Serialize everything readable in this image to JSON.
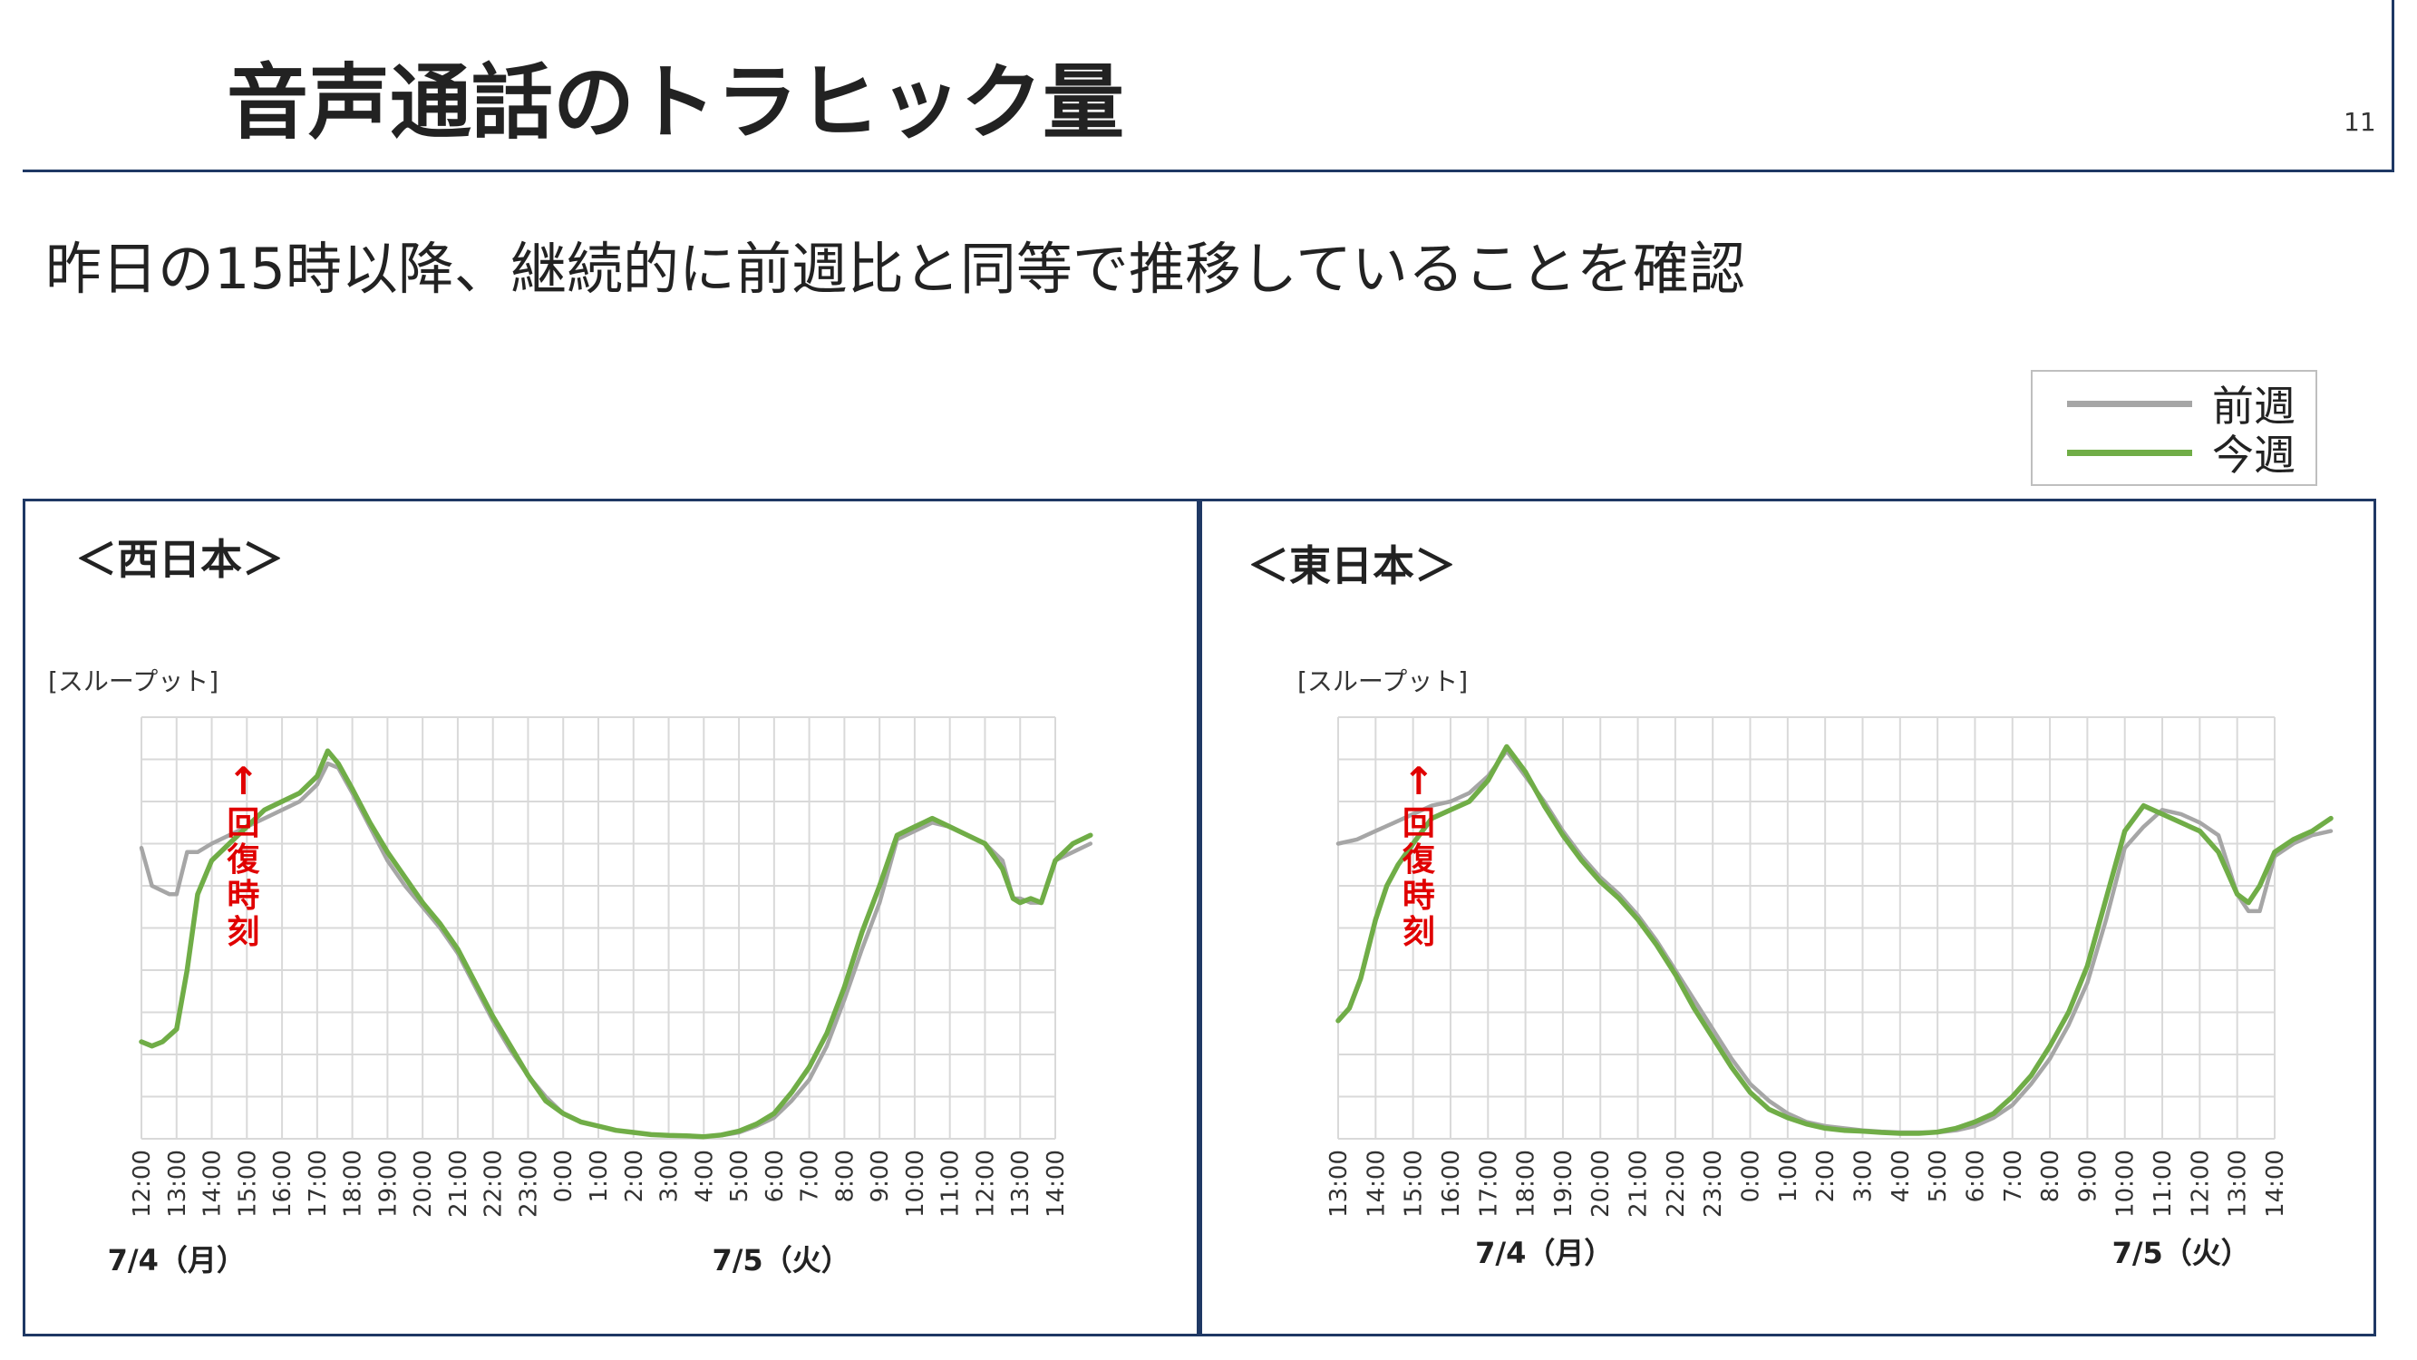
{
  "slide": {
    "title": "音声通話のトラヒック量",
    "page_number": "11",
    "subtitle": "昨日の15時以降、継続的に前週比と同等で推移していることを確認"
  },
  "legend": {
    "items": [
      {
        "label": "前週",
        "color": "#a6a6a6"
      },
      {
        "label": "今週",
        "color": "#70ad47"
      }
    ]
  },
  "colors": {
    "accent": "#1f3864",
    "annotation": "#e00000",
    "grid": "#d9d9d9"
  },
  "chart_data": [
    {
      "type": "line",
      "panel_title": "＜西日本＞",
      "ylabel": "[スループット]",
      "x_ticks": [
        "12:00",
        "13:00",
        "14:00",
        "15:00",
        "16:00",
        "17:00",
        "18:00",
        "19:00",
        "20:00",
        "21:00",
        "22:00",
        "23:00",
        "0:00",
        "1:00",
        "2:00",
        "3:00",
        "4:00",
        "5:00",
        "6:00",
        "7:00",
        "8:00",
        "9:00",
        "10:00",
        "11:00",
        "12:00",
        "13:00",
        "14:00"
      ],
      "date_labels": [
        {
          "text": "7/4（月）",
          "at": 1
        },
        {
          "text": "7/5（火）",
          "at": 18.2
        }
      ],
      "annotation": {
        "arrow": "↑",
        "text": "回復時刻",
        "at": 2.9
      },
      "grid": true,
      "ylim": [
        0,
        100
      ],
      "series": [
        {
          "name": "前週",
          "color": "#a6a6a6",
          "points": [
            [
              0,
              69
            ],
            [
              0.3,
              60
            ],
            [
              0.8,
              58
            ],
            [
              1.0,
              58
            ],
            [
              1.3,
              68
            ],
            [
              1.6,
              68
            ],
            [
              2.0,
              70
            ],
            [
              2.5,
              72
            ],
            [
              3.0,
              74
            ],
            [
              3.5,
              76
            ],
            [
              4.0,
              78
            ],
            [
              4.5,
              80
            ],
            [
              5.0,
              84
            ],
            [
              5.3,
              89
            ],
            [
              5.6,
              88
            ],
            [
              6.0,
              82
            ],
            [
              6.5,
              74
            ],
            [
              7.0,
              66
            ],
            [
              7.5,
              60
            ],
            [
              8.0,
              55
            ],
            [
              8.5,
              50
            ],
            [
              9.0,
              44
            ],
            [
              9.5,
              36
            ],
            [
              10.0,
              28
            ],
            [
              10.5,
              21
            ],
            [
              11.0,
              15
            ],
            [
              11.5,
              10
            ],
            [
              12.0,
              6
            ],
            [
              12.5,
              4
            ],
            [
              13.0,
              3
            ],
            [
              13.5,
              2
            ],
            [
              14.0,
              1.5
            ],
            [
              14.5,
              1
            ],
            [
              15.0,
              0.8
            ],
            [
              15.5,
              0.7
            ],
            [
              16.0,
              0.5
            ],
            [
              16.5,
              0.8
            ],
            [
              17.0,
              1.5
            ],
            [
              17.5,
              3
            ],
            [
              18.0,
              5
            ],
            [
              18.5,
              9
            ],
            [
              19.0,
              14
            ],
            [
              19.5,
              22
            ],
            [
              20.0,
              33
            ],
            [
              20.5,
              45
            ],
            [
              21.0,
              56
            ],
            [
              21.5,
              71
            ],
            [
              22.0,
              73
            ],
            [
              22.5,
              75
            ],
            [
              23.0,
              74
            ],
            [
              23.5,
              72
            ],
            [
              24.0,
              70
            ],
            [
              24.5,
              66
            ],
            [
              24.8,
              57
            ],
            [
              25.0,
              57
            ],
            [
              25.3,
              56
            ],
            [
              25.6,
              56
            ],
            [
              26.0,
              66
            ],
            [
              26.5,
              68
            ],
            [
              27.0,
              70
            ]
          ]
        },
        {
          "name": "今週",
          "color": "#70ad47",
          "points": [
            [
              0,
              23
            ],
            [
              0.3,
              22
            ],
            [
              0.6,
              23
            ],
            [
              1.0,
              26
            ],
            [
              1.3,
              40
            ],
            [
              1.6,
              58
            ],
            [
              2.0,
              66
            ],
            [
              2.5,
              70
            ],
            [
              3.0,
              74
            ],
            [
              3.5,
              78
            ],
            [
              4.0,
              80
            ],
            [
              4.5,
              82
            ],
            [
              5.0,
              86
            ],
            [
              5.3,
              92
            ],
            [
              5.6,
              89
            ],
            [
              6.0,
              83
            ],
            [
              6.5,
              75
            ],
            [
              7.0,
              68
            ],
            [
              7.5,
              62
            ],
            [
              8.0,
              56
            ],
            [
              8.5,
              51
            ],
            [
              9.0,
              45
            ],
            [
              9.5,
              37
            ],
            [
              10.0,
              29
            ],
            [
              10.5,
              22
            ],
            [
              11.0,
              15
            ],
            [
              11.5,
              9
            ],
            [
              12.0,
              6
            ],
            [
              12.5,
              4
            ],
            [
              13.0,
              3
            ],
            [
              13.5,
              2
            ],
            [
              14.0,
              1.5
            ],
            [
              14.5,
              1
            ],
            [
              15.0,
              0.8
            ],
            [
              15.5,
              0.7
            ],
            [
              16.0,
              0.5
            ],
            [
              16.5,
              0.9
            ],
            [
              17.0,
              1.8
            ],
            [
              17.5,
              3.5
            ],
            [
              18.0,
              6
            ],
            [
              18.5,
              11
            ],
            [
              19.0,
              17
            ],
            [
              19.5,
              25
            ],
            [
              20.0,
              36
            ],
            [
              20.5,
              49
            ],
            [
              21.0,
              60
            ],
            [
              21.5,
              72
            ],
            [
              22.0,
              74
            ],
            [
              22.5,
              76
            ],
            [
              23.0,
              74
            ],
            [
              23.5,
              72
            ],
            [
              24.0,
              70
            ],
            [
              24.5,
              64
            ],
            [
              24.8,
              57
            ],
            [
              25.0,
              56
            ],
            [
              25.3,
              57
            ],
            [
              25.6,
              56
            ],
            [
              26.0,
              66
            ],
            [
              26.5,
              70
            ],
            [
              27.0,
              72
            ]
          ]
        }
      ]
    },
    {
      "type": "line",
      "panel_title": "＜東日本＞",
      "ylabel": "[スループット]",
      "x_ticks": [
        "13:00",
        "14:00",
        "15:00",
        "16:00",
        "17:00",
        "18:00",
        "19:00",
        "20:00",
        "21:00",
        "22:00",
        "23:00",
        "0:00",
        "1:00",
        "2:00",
        "3:00",
        "4:00",
        "5:00",
        "6:00",
        "7:00",
        "8:00",
        "9:00",
        "10:00",
        "11:00",
        "12:00",
        "13:00",
        "14:00"
      ],
      "date_labels": [
        {
          "text": "7/4（月）",
          "at": 5.5
        },
        {
          "text": "7/5（火）",
          "at": 22.5
        }
      ],
      "annotation": {
        "arrow": "↑",
        "text": "回復時刻",
        "at": 2.15
      },
      "grid": true,
      "ylim": [
        0,
        100
      ],
      "series": [
        {
          "name": "前週",
          "color": "#a6a6a6",
          "points": [
            [
              0,
              70
            ],
            [
              0.5,
              71
            ],
            [
              1.0,
              73
            ],
            [
              1.5,
              75
            ],
            [
              2.0,
              77
            ],
            [
              2.5,
              79
            ],
            [
              3.0,
              80
            ],
            [
              3.5,
              82
            ],
            [
              4.0,
              86
            ],
            [
              4.5,
              92
            ],
            [
              5.0,
              86
            ],
            [
              5.5,
              80
            ],
            [
              6.0,
              73
            ],
            [
              6.5,
              67
            ],
            [
              7.0,
              62
            ],
            [
              7.5,
              58
            ],
            [
              8.0,
              53
            ],
            [
              8.5,
              47
            ],
            [
              9.0,
              40
            ],
            [
              9.5,
              33
            ],
            [
              10.0,
              26
            ],
            [
              10.5,
              19
            ],
            [
              11.0,
              13
            ],
            [
              11.5,
              9
            ],
            [
              12.0,
              6
            ],
            [
              12.5,
              4
            ],
            [
              13.0,
              3
            ],
            [
              13.5,
              2.5
            ],
            [
              14.0,
              2
            ],
            [
              14.5,
              1.7
            ],
            [
              15.0,
              1.5
            ],
            [
              15.5,
              1.5
            ],
            [
              16.0,
              1.5
            ],
            [
              16.5,
              2
            ],
            [
              17.0,
              3
            ],
            [
              17.5,
              5
            ],
            [
              18.0,
              8
            ],
            [
              18.5,
              13
            ],
            [
              19.0,
              19
            ],
            [
              19.5,
              27
            ],
            [
              20.0,
              37
            ],
            [
              20.5,
              52
            ],
            [
              21.0,
              69
            ],
            [
              21.5,
              74
            ],
            [
              22.0,
              78
            ],
            [
              22.5,
              77
            ],
            [
              23.0,
              75
            ],
            [
              23.5,
              72
            ],
            [
              24.0,
              58
            ],
            [
              24.3,
              54
            ],
            [
              24.6,
              54
            ],
            [
              25.0,
              67
            ],
            [
              25.5,
              70
            ],
            [
              26.0,
              72
            ],
            [
              26.5,
              73
            ]
          ]
        },
        {
          "name": "今週",
          "color": "#70ad47",
          "points": [
            [
              0,
              28
            ],
            [
              0.3,
              31
            ],
            [
              0.6,
              38
            ],
            [
              1.0,
              52
            ],
            [
              1.3,
              60
            ],
            [
              1.6,
              65
            ],
            [
              2.0,
              70
            ],
            [
              2.5,
              76
            ],
            [
              3.0,
              78
            ],
            [
              3.5,
              80
            ],
            [
              4.0,
              85
            ],
            [
              4.5,
              93
            ],
            [
              5.0,
              87
            ],
            [
              5.5,
              79
            ],
            [
              6.0,
              72
            ],
            [
              6.5,
              66
            ],
            [
              7.0,
              61
            ],
            [
              7.5,
              57
            ],
            [
              8.0,
              52
            ],
            [
              8.5,
              46
            ],
            [
              9.0,
              39
            ],
            [
              9.5,
              31
            ],
            [
              10.0,
              24
            ],
            [
              10.5,
              17
            ],
            [
              11.0,
              11
            ],
            [
              11.5,
              7
            ],
            [
              12.0,
              5
            ],
            [
              12.5,
              3.5
            ],
            [
              13.0,
              2.5
            ],
            [
              13.5,
              2
            ],
            [
              14.0,
              1.8
            ],
            [
              14.5,
              1.5
            ],
            [
              15.0,
              1.3
            ],
            [
              15.5,
              1.3
            ],
            [
              16.0,
              1.6
            ],
            [
              16.5,
              2.5
            ],
            [
              17.0,
              4
            ],
            [
              17.5,
              6
            ],
            [
              18.0,
              10
            ],
            [
              18.5,
              15
            ],
            [
              19.0,
              22
            ],
            [
              19.5,
              30
            ],
            [
              20.0,
              41
            ],
            [
              20.5,
              57
            ],
            [
              21.0,
              73
            ],
            [
              21.5,
              79
            ],
            [
              22.0,
              77
            ],
            [
              22.5,
              75
            ],
            [
              23.0,
              73
            ],
            [
              23.5,
              68
            ],
            [
              24.0,
              58
            ],
            [
              24.3,
              56
            ],
            [
              24.6,
              60
            ],
            [
              25.0,
              68
            ],
            [
              25.5,
              71
            ],
            [
              26.0,
              73
            ],
            [
              26.5,
              76
            ]
          ]
        }
      ]
    }
  ]
}
